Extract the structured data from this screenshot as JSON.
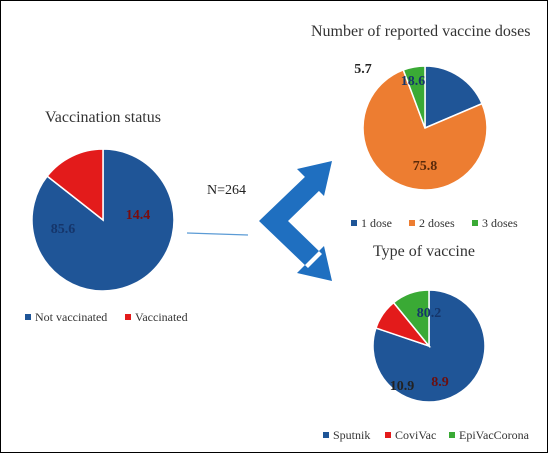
{
  "colors": {
    "blue": "#1F5597",
    "orange": "#ED7D31",
    "green": "#3AAA35",
    "red": "#E31B1B",
    "arrow": "#1F6FC0"
  },
  "n_label": "N=264",
  "chart_data": [
    {
      "type": "pie",
      "title": "Vaccination status",
      "categories": [
        "Not vaccinated",
        "Vaccinated"
      ],
      "values": [
        85.6,
        14.4
      ],
      "data_labels": [
        "85.6",
        "14.4"
      ],
      "colors": [
        "#1F5597",
        "#E31B1B"
      ],
      "legend_position": "bottom"
    },
    {
      "type": "pie",
      "title": "Number of reported vaccine doses",
      "categories": [
        "1 dose",
        "2 doses",
        "3 doses"
      ],
      "values": [
        18.6,
        75.8,
        5.7
      ],
      "data_labels": [
        "18.6",
        "75.8",
        "5.7"
      ],
      "colors": [
        "#1F5597",
        "#ED7D31",
        "#3AAA35"
      ],
      "legend_position": "bottom"
    },
    {
      "type": "pie",
      "title": "Type of vaccine",
      "categories": [
        "Sputnik",
        "CoviVac",
        "EpiVacCorona"
      ],
      "values": [
        80.2,
        8.9,
        10.9
      ],
      "data_labels": [
        "80.2",
        "8.9",
        "10.9"
      ],
      "colors": [
        "#1F5597",
        "#E31B1B",
        "#3AAA35"
      ],
      "legend_position": "bottom"
    }
  ]
}
